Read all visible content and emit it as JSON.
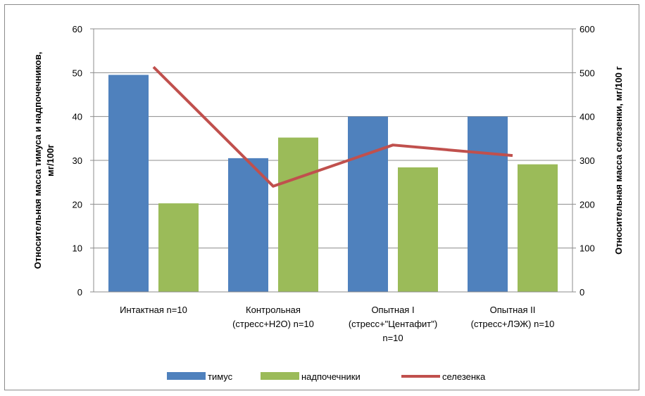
{
  "chart_data": {
    "type": "bar",
    "categories": [
      [
        "Интактная n=10"
      ],
      [
        "Контрольная",
        "(стресс+Н2О) n=10"
      ],
      [
        "Опытная I",
        "(стресс+\"Центафит\")",
        "n=10"
      ],
      [
        "Опытная II",
        "(стресс+ЛЭЖ) n=10"
      ]
    ],
    "series": [
      {
        "name": "тимус",
        "type": "bar",
        "axis": "left",
        "values": [
          49.5,
          30.5,
          40,
          40
        ],
        "color": "#4f81bd"
      },
      {
        "name": "надпочечники",
        "type": "bar",
        "axis": "left",
        "values": [
          20.2,
          35.2,
          28.4,
          29.1
        ],
        "color": "#9bbb59"
      },
      {
        "name": "селезенка",
        "type": "line",
        "axis": "right",
        "values": [
          513,
          241,
          335,
          311
        ],
        "color": "#c0504d"
      }
    ],
    "ylabel": [
      "Относительная масса тимуса и надпочечников,",
      "мг/100г"
    ],
    "y2label": "Относительная  масса селезенки, мг/100 г",
    "ylim": [
      0,
      60
    ],
    "y2lim": [
      0,
      600
    ],
    "yticks": [
      "0",
      "10",
      "20",
      "30",
      "40",
      "50",
      "60"
    ],
    "y2ticks": [
      "0",
      "100",
      "200",
      "300",
      "400",
      "500",
      "600"
    ],
    "grid": true,
    "legend": "bottom"
  }
}
